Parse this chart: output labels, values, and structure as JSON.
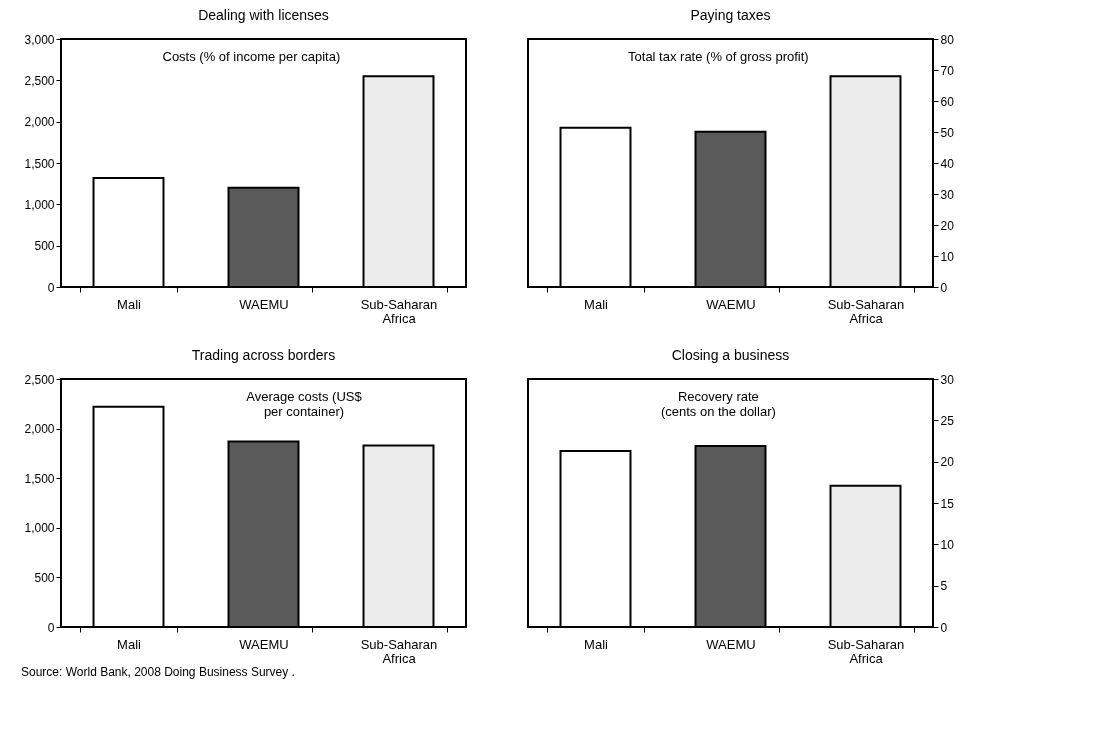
{
  "chart_data": [
    {
      "type": "bar",
      "title": "Dealing with licenses",
      "categories": [
        "Mali",
        "WAEMU",
        "Sub-Saharan Africa"
      ],
      "values": [
        1320,
        1200,
        2550
      ],
      "colors": [
        "#ffffff",
        "#5a5a5a",
        "#ececec"
      ],
      "ylim": [
        0,
        3000
      ],
      "yticks": [
        {
          "value": 0,
          "label": "0"
        },
        {
          "value": 500,
          "label": "500"
        },
        {
          "value": 1000,
          "label": "1,000"
        },
        {
          "value": 1500,
          "label": "1,500"
        },
        {
          "value": 2000,
          "label": "2,000"
        },
        {
          "value": 2500,
          "label": "2,500"
        },
        {
          "value": 3000,
          "label": "3,000"
        }
      ],
      "annotations": [
        "Costs (% of income per capita)"
      ]
    },
    {
      "type": "bar",
      "title": "Paying taxes",
      "categories": [
        "Mali",
        "WAEMU",
        "Sub-Saharan Africa"
      ],
      "series": [
        {
          "axis": "y2",
          "values": [
            51.4,
            50.1,
            68.0
          ]
        }
      ],
      "colors": [
        "#ffffff",
        "#5a5a5a",
        "#ececec"
      ],
      "y2lim": [
        0,
        80
      ],
      "y2ticks": [
        0,
        10,
        20,
        30,
        40,
        50,
        60,
        70,
        80
      ],
      "annotations": [
        "Total tax rate (% of gross profit)"
      ]
    },
    {
      "type": "bar",
      "title": "Trading across borders",
      "categories": [
        "Mali",
        "WAEMU",
        "Sub-Saharan Africa"
      ],
      "values": [
        2220,
        1870,
        1830
      ],
      "colors": [
        "#ffffff",
        "#5a5a5a",
        "#ececec"
      ],
      "ylim": [
        0,
        2500
      ],
      "yticks": [
        {
          "value": 0,
          "label": "0"
        },
        {
          "value": 500,
          "label": "500"
        },
        {
          "value": 1000,
          "label": "1,000"
        },
        {
          "value": 1500,
          "label": "1,500"
        },
        {
          "value": 2000,
          "label": "2,000"
        },
        {
          "value": 2500,
          "label": "2,500"
        }
      ],
      "annotations": [
        "Average costs (US$\nper container)",
        "Source:  World Bank, 2008 Doing Business Survey ."
      ]
    },
    {
      "type": "bar",
      "title": "Closing a business",
      "categories": [
        "Mali",
        "WAEMU",
        "Sub-Saharan Africa"
      ],
      "series": [
        {
          "axis": "y2",
          "values": [
            21.3,
            21.9,
            17.1
          ]
        }
      ],
      "colors": [
        "#ffffff",
        "#5a5a5a",
        "#ececec"
      ],
      "y2lim": [
        0,
        30
      ],
      "y2ticks": [
        0,
        5,
        10,
        15,
        20,
        25,
        30
      ],
      "annotations": [
        "Recovery rate\n(cents on the dollar)"
      ]
    }
  ]
}
